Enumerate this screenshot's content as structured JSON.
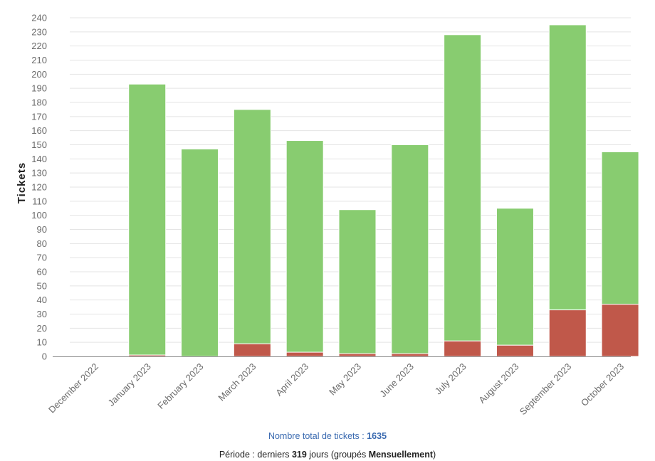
{
  "chart_data": {
    "type": "bar",
    "stacked": true,
    "ylabel": "Tickets",
    "xlabel": "",
    "ylim": [
      0,
      240
    ],
    "ytick_step": 10,
    "grid": true,
    "categories": [
      "December 2022",
      "January 2023",
      "February 2023",
      "March 2023",
      "April 2023",
      "May 2023",
      "June 2023",
      "July 2023",
      "August 2023",
      "September 2023",
      "October 2023"
    ],
    "series": [
      {
        "values": [
          0,
          1,
          0,
          9,
          3,
          2,
          2,
          11,
          8,
          33,
          37
        ],
        "color": "#c0584a"
      },
      {
        "values": [
          0,
          192,
          147,
          166,
          150,
          102,
          148,
          217,
          97,
          202,
          108
        ],
        "color": "#88cc70"
      }
    ]
  },
  "footer": {
    "total_label": "Nombre total de tickets : ",
    "total_value": "1635",
    "period_prefix": "Période : derniers ",
    "period_days": "319",
    "period_middle": " jours (groupés ",
    "period_group": "Mensuellement",
    "period_suffix": ")"
  }
}
